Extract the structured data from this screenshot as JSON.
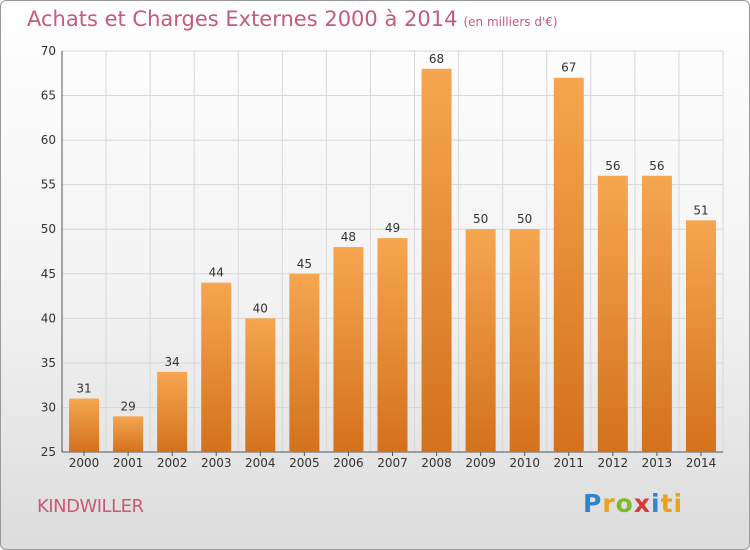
{
  "header": {
    "title": "Achats et Charges Externes 2000 à 2014",
    "subtitle": "(en milliers d'€)"
  },
  "footer": {
    "commune": "KINDWILLER",
    "logo": [
      "P",
      "r",
      "o",
      "x",
      "i",
      "ti"
    ]
  },
  "colors": {
    "title": "#c85a78",
    "bar_top": "#f6a650",
    "bar_bottom": "#d4711c",
    "grid": "#d8d8d8"
  },
  "chart_data": {
    "type": "bar",
    "title": "Achats et Charges Externes 2000 à 2014",
    "categories": [
      "2000",
      "2001",
      "2002",
      "2003",
      "2004",
      "2005",
      "2006",
      "2007",
      "2008",
      "2009",
      "2010",
      "2011",
      "2012",
      "2013",
      "2014"
    ],
    "values": [
      31,
      29,
      34,
      44,
      40,
      45,
      48,
      49,
      68,
      50,
      50,
      67,
      56,
      56,
      51
    ],
    "yticks": [
      25,
      30,
      35,
      40,
      45,
      50,
      55,
      60,
      65,
      70
    ],
    "ylim": [
      25,
      70
    ],
    "grid": true,
    "legend": "none"
  }
}
